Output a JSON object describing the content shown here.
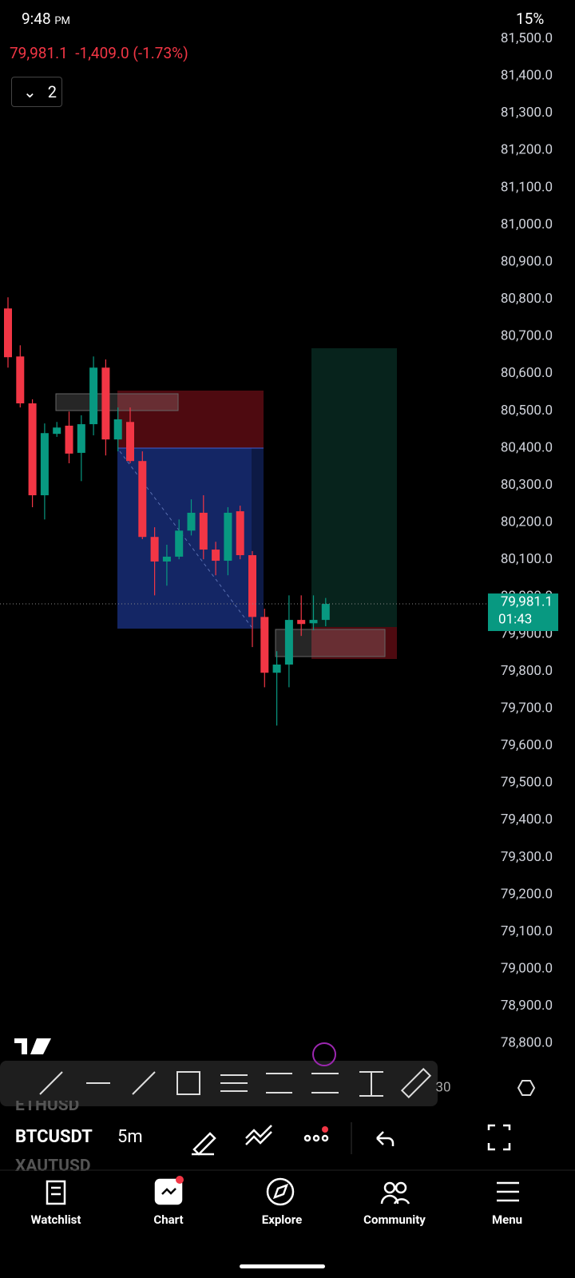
{
  "status_bar": {
    "time": "9:48",
    "ampm": "PM",
    "battery": "15%"
  },
  "header": {
    "price": "79,981.1",
    "change": "-1,409.0 (-1.73%)",
    "layout_count": "2"
  },
  "chart_data": {
    "type": "candlestick",
    "up_color": "#089981",
    "down_color": "#f23645",
    "open": [
      80775,
      80646,
      80520,
      80273,
      80438,
      80460,
      80387,
      80464,
      80616,
      80423,
      80470,
      80365,
      80161,
      80095,
      80108,
      80178,
      80226,
      80127,
      80097,
      80230,
      80112,
      79946,
      79796,
      79818,
      79938,
      79929,
      79938
    ],
    "high": [
      80805,
      80676,
      80531,
      80466,
      80470,
      80498,
      80488,
      80646,
      80638,
      80509,
      80509,
      80391,
      80187,
      80140,
      80208,
      80262,
      80273,
      80148,
      80241,
      80245,
      80123,
      79968,
      79854,
      80004,
      80004,
      80004,
      79997
    ],
    "low": [
      80616,
      80509,
      80241,
      80208,
      80430,
      80359,
      80311,
      80434,
      80380,
      80391,
      80359,
      80155,
      80004,
      80030,
      80101,
      80165,
      80101,
      80058,
      80058,
      80101,
      79865,
      79757,
      79654,
      79757,
      79895,
      79910,
      79921
    ],
    "close": [
      80644,
      80520,
      80273,
      80440,
      80455,
      80385,
      80464,
      80616,
      80423,
      80477,
      80365,
      80161,
      80095,
      80108,
      80178,
      80226,
      80127,
      80097,
      80226,
      80112,
      79946,
      79796,
      79818,
      79938,
      79927,
      79938,
      79981
    ],
    "ylim": [
      78749,
      81604
    ],
    "yticks": [
      {
        "value": 81500,
        "label": "81,500.0"
      },
      {
        "value": 81400,
        "label": "81,400.0"
      },
      {
        "value": 81300,
        "label": "81,300.0"
      },
      {
        "value": 81200,
        "label": "81,200.0"
      },
      {
        "value": 81100,
        "label": "81,100.0"
      },
      {
        "value": 81000,
        "label": "81,000.0"
      },
      {
        "value": 80900,
        "label": "80,900.0"
      },
      {
        "value": 80800,
        "label": "80,800.0"
      },
      {
        "value": 80700,
        "label": "80,700.0"
      },
      {
        "value": 80600,
        "label": "80,600.0"
      },
      {
        "value": 80500,
        "label": "80,500.0"
      },
      {
        "value": 80400,
        "label": "80,400.0"
      },
      {
        "value": 80300,
        "label": "80,300.0"
      },
      {
        "value": 80200,
        "label": "80,200.0"
      },
      {
        "value": 80100,
        "label": "80,100.0"
      },
      {
        "value": 80000,
        "label": "80,000.0"
      },
      {
        "value": 79900,
        "label": "79,900.0"
      },
      {
        "value": 79800,
        "label": "79,800.0"
      },
      {
        "value": 79700,
        "label": "79,700.0"
      },
      {
        "value": 79600,
        "label": "79,600.0"
      },
      {
        "value": 79500,
        "label": "79,500.0"
      },
      {
        "value": 79400,
        "label": "79,400.0"
      },
      {
        "value": 79300,
        "label": "79,300.0"
      },
      {
        "value": 79200,
        "label": "79,200.0"
      },
      {
        "value": 79100,
        "label": "79,100.0"
      },
      {
        "value": 79000,
        "label": "79,000.0"
      },
      {
        "value": 78900,
        "label": "78,900.0"
      },
      {
        "value": 78800,
        "label": "78,800.0"
      }
    ],
    "last_price": 79981.1,
    "last_price_label": "79,981.1",
    "countdown": "01:43",
    "x_tick_labels": [
      "30"
    ]
  },
  "symbol_bar": {
    "symbols": [
      "ETHUSD",
      "BTCUSDT",
      "XAUTUSD"
    ],
    "interval": "5m"
  },
  "nav": [
    "Watchlist",
    "Chart",
    "Explore",
    "Community",
    "Menu"
  ]
}
